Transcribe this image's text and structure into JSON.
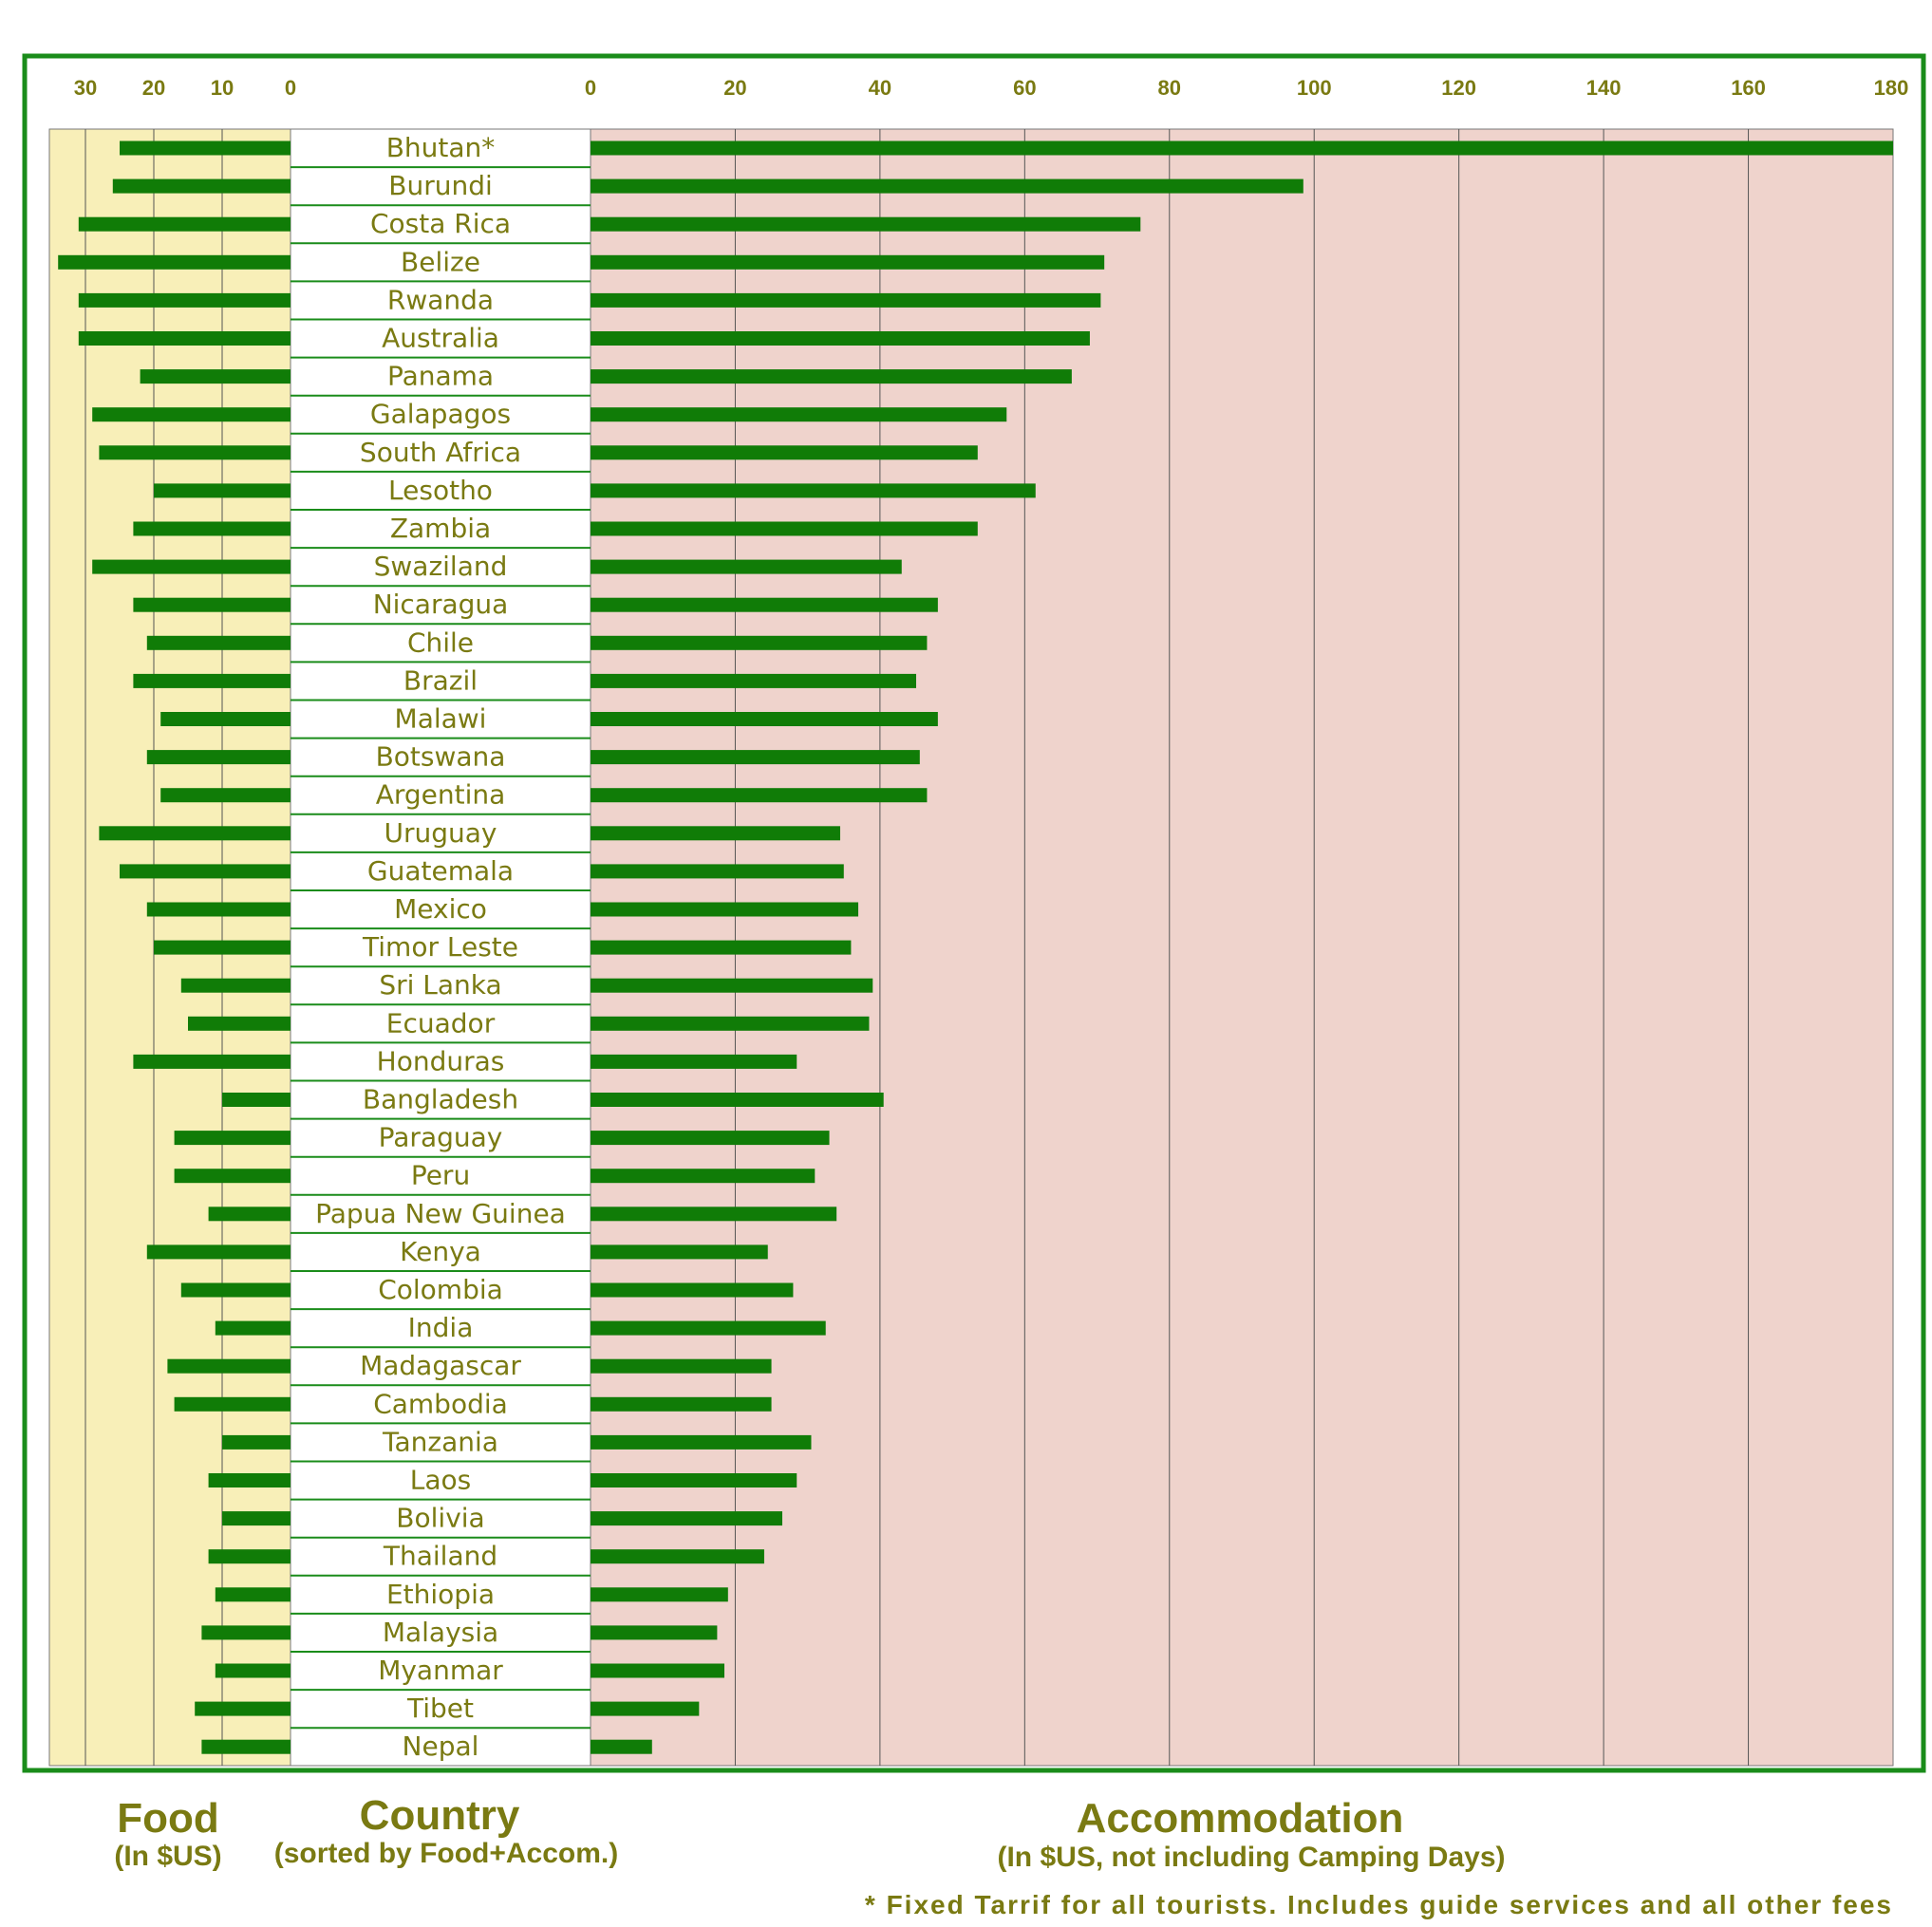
{
  "chart_data": {
    "type": "bar",
    "categories": [
      "Bhutan*",
      "Burundi",
      "Costa Rica",
      "Belize",
      "Rwanda",
      "Australia",
      "Panama",
      "Galapagos",
      "South Africa",
      "Lesotho",
      "Zambia",
      "Swaziland",
      "Nicaragua",
      "Chile",
      "Brazil",
      "Malawi",
      "Botswana",
      "Argentina",
      "Uruguay",
      "Guatemala",
      "Mexico",
      "Timor Leste",
      "Sri Lanka",
      "Ecuador",
      "Honduras",
      "Bangladesh",
      "Paraguay",
      "Peru",
      "Papua New Guinea",
      "Kenya",
      "Colombia",
      "India",
      "Madagascar",
      "Cambodia",
      "Tanzania",
      "Laos",
      "Bolivia",
      "Thailand",
      "Ethiopia",
      "Malaysia",
      "Myanmar",
      "Tibet",
      "Nepal"
    ],
    "series": [
      {
        "name": "Food",
        "values": [
          25,
          26,
          31,
          34,
          31,
          31,
          22,
          29,
          28,
          20,
          23,
          29,
          23,
          21,
          23,
          19,
          21,
          19,
          28,
          25,
          21,
          20,
          16,
          15,
          23,
          10,
          17,
          17,
          12,
          21,
          16,
          11,
          18,
          17,
          10,
          12,
          10,
          12,
          11,
          13,
          11,
          14,
          13
        ]
      },
      {
        "name": "Accommodation",
        "values": [
          180,
          98.5,
          76,
          71,
          70.5,
          69,
          66.5,
          57.5,
          53.5,
          61.5,
          53.5,
          43,
          48,
          46.5,
          45,
          48,
          45.5,
          46.5,
          34.5,
          35,
          37,
          36,
          39,
          38.5,
          28.5,
          40.5,
          33,
          31,
          34,
          24.5,
          28,
          32.5,
          25,
          25,
          30.5,
          28.5,
          26.5,
          24,
          19,
          17.5,
          18.5,
          15,
          8.5
        ]
      }
    ],
    "food_axis": {
      "ticks": [
        "30",
        "20",
        "10",
        "0"
      ],
      "range": [
        0,
        35
      ]
    },
    "accommodation_axis": {
      "ticks": [
        "0",
        "20",
        "40",
        "60",
        "80",
        "100",
        "120",
        "140",
        "160",
        "180"
      ],
      "range": [
        0,
        180
      ]
    },
    "grid": true,
    "bar_color": "#107c07",
    "food_bg": "#f8efb8",
    "accommodation_bg": "#efd3cc",
    "frame_color": "#1a8c1a",
    "text_color": "#7a7a12",
    "food_title": "Food",
    "food_subtitle": "(In $US)",
    "country_title": "Country",
    "country_subtitle": "(sorted by Food+Accom.)",
    "accommodation_title": "Accommodation",
    "accommodation_subtitle": "(In $US, not including Camping Days)",
    "footnote": "* Fixed Tarrif for all tourists. Includes guide services and all other fees"
  }
}
